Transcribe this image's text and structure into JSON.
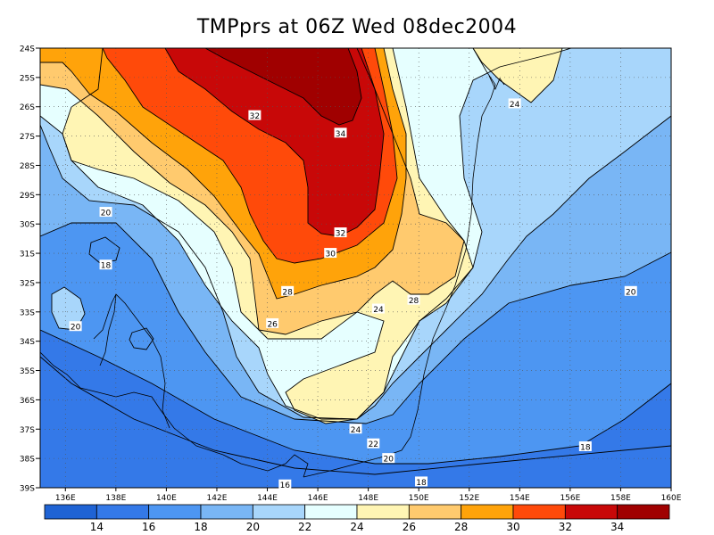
{
  "title": "TMPprs at 06Z Wed 08dec2004",
  "map": {
    "lat_labels": [
      "24S",
      "25S",
      "26S",
      "27S",
      "28S",
      "29S",
      "30S",
      "31S",
      "32S",
      "33S",
      "34S",
      "35S",
      "36S",
      "37S",
      "38S",
      "39S"
    ],
    "lon_labels": [
      "136E",
      "138E",
      "140E",
      "142E",
      "144E",
      "146E",
      "148E",
      "150E",
      "152E",
      "154E",
      "156E",
      "158E",
      "160E"
    ],
    "contour_labels": [
      {
        "text": "32",
        "lon": 143.5,
        "lat": 26.3
      },
      {
        "text": "34",
        "lon": 146.9,
        "lat": 26.9
      },
      {
        "text": "32",
        "lon": 146.9,
        "lat": 30.3
      },
      {
        "text": "30",
        "lon": 146.5,
        "lat": 31.0
      },
      {
        "text": "28",
        "lon": 144.8,
        "lat": 32.3
      },
      {
        "text": "28",
        "lon": 149.8,
        "lat": 32.6
      },
      {
        "text": "26",
        "lon": 144.2,
        "lat": 33.4
      },
      {
        "text": "24",
        "lon": 148.4,
        "lat": 32.9
      },
      {
        "text": "24",
        "lon": 153.8,
        "lat": 25.9
      },
      {
        "text": "20",
        "lon": 137.6,
        "lat": 29.6
      },
      {
        "text": "18",
        "lon": 137.6,
        "lat": 31.4
      },
      {
        "text": "20",
        "lon": 136.4,
        "lat": 33.5
      },
      {
        "text": "20",
        "lon": 158.4,
        "lat": 32.3
      },
      {
        "text": "24",
        "lon": 147.5,
        "lat": 37.0
      },
      {
        "text": "22",
        "lon": 148.2,
        "lat": 37.5
      },
      {
        "text": "20",
        "lon": 148.8,
        "lat": 38.0
      },
      {
        "text": "18",
        "lon": 150.1,
        "lat": 38.8
      },
      {
        "text": "18",
        "lon": 156.6,
        "lat": 37.6
      },
      {
        "text": "16",
        "lon": 144.7,
        "lat": 38.9
      }
    ]
  },
  "legend": {
    "labels": [
      "14",
      "16",
      "18",
      "20",
      "22",
      "24",
      "26",
      "28",
      "30",
      "32",
      "34"
    ],
    "colors": [
      "#1f63d4",
      "#3479e8",
      "#4d96f2",
      "#79b6f5",
      "#a8d6fb",
      "#e6ffff",
      "#fff5b4",
      "#ffca6e",
      "#ffa30a",
      "#ff4a0a",
      "#c80808",
      "#a00000"
    ]
  },
  "fill_colors": {
    "below_14": "#1f63d4",
    "c14_16": "#3479e8",
    "c16_18": "#4d96f2",
    "c18_20": "#79b6f5",
    "c20_22": "#a8d6fb",
    "c22_24": "#e6ffff",
    "c24_26": "#fff5b4",
    "c26_28": "#ffca6e",
    "c28_30": "#ffa30a",
    "c30_32": "#ff4a0a",
    "c32_34": "#c80808",
    "above_34": "#a00000"
  }
}
